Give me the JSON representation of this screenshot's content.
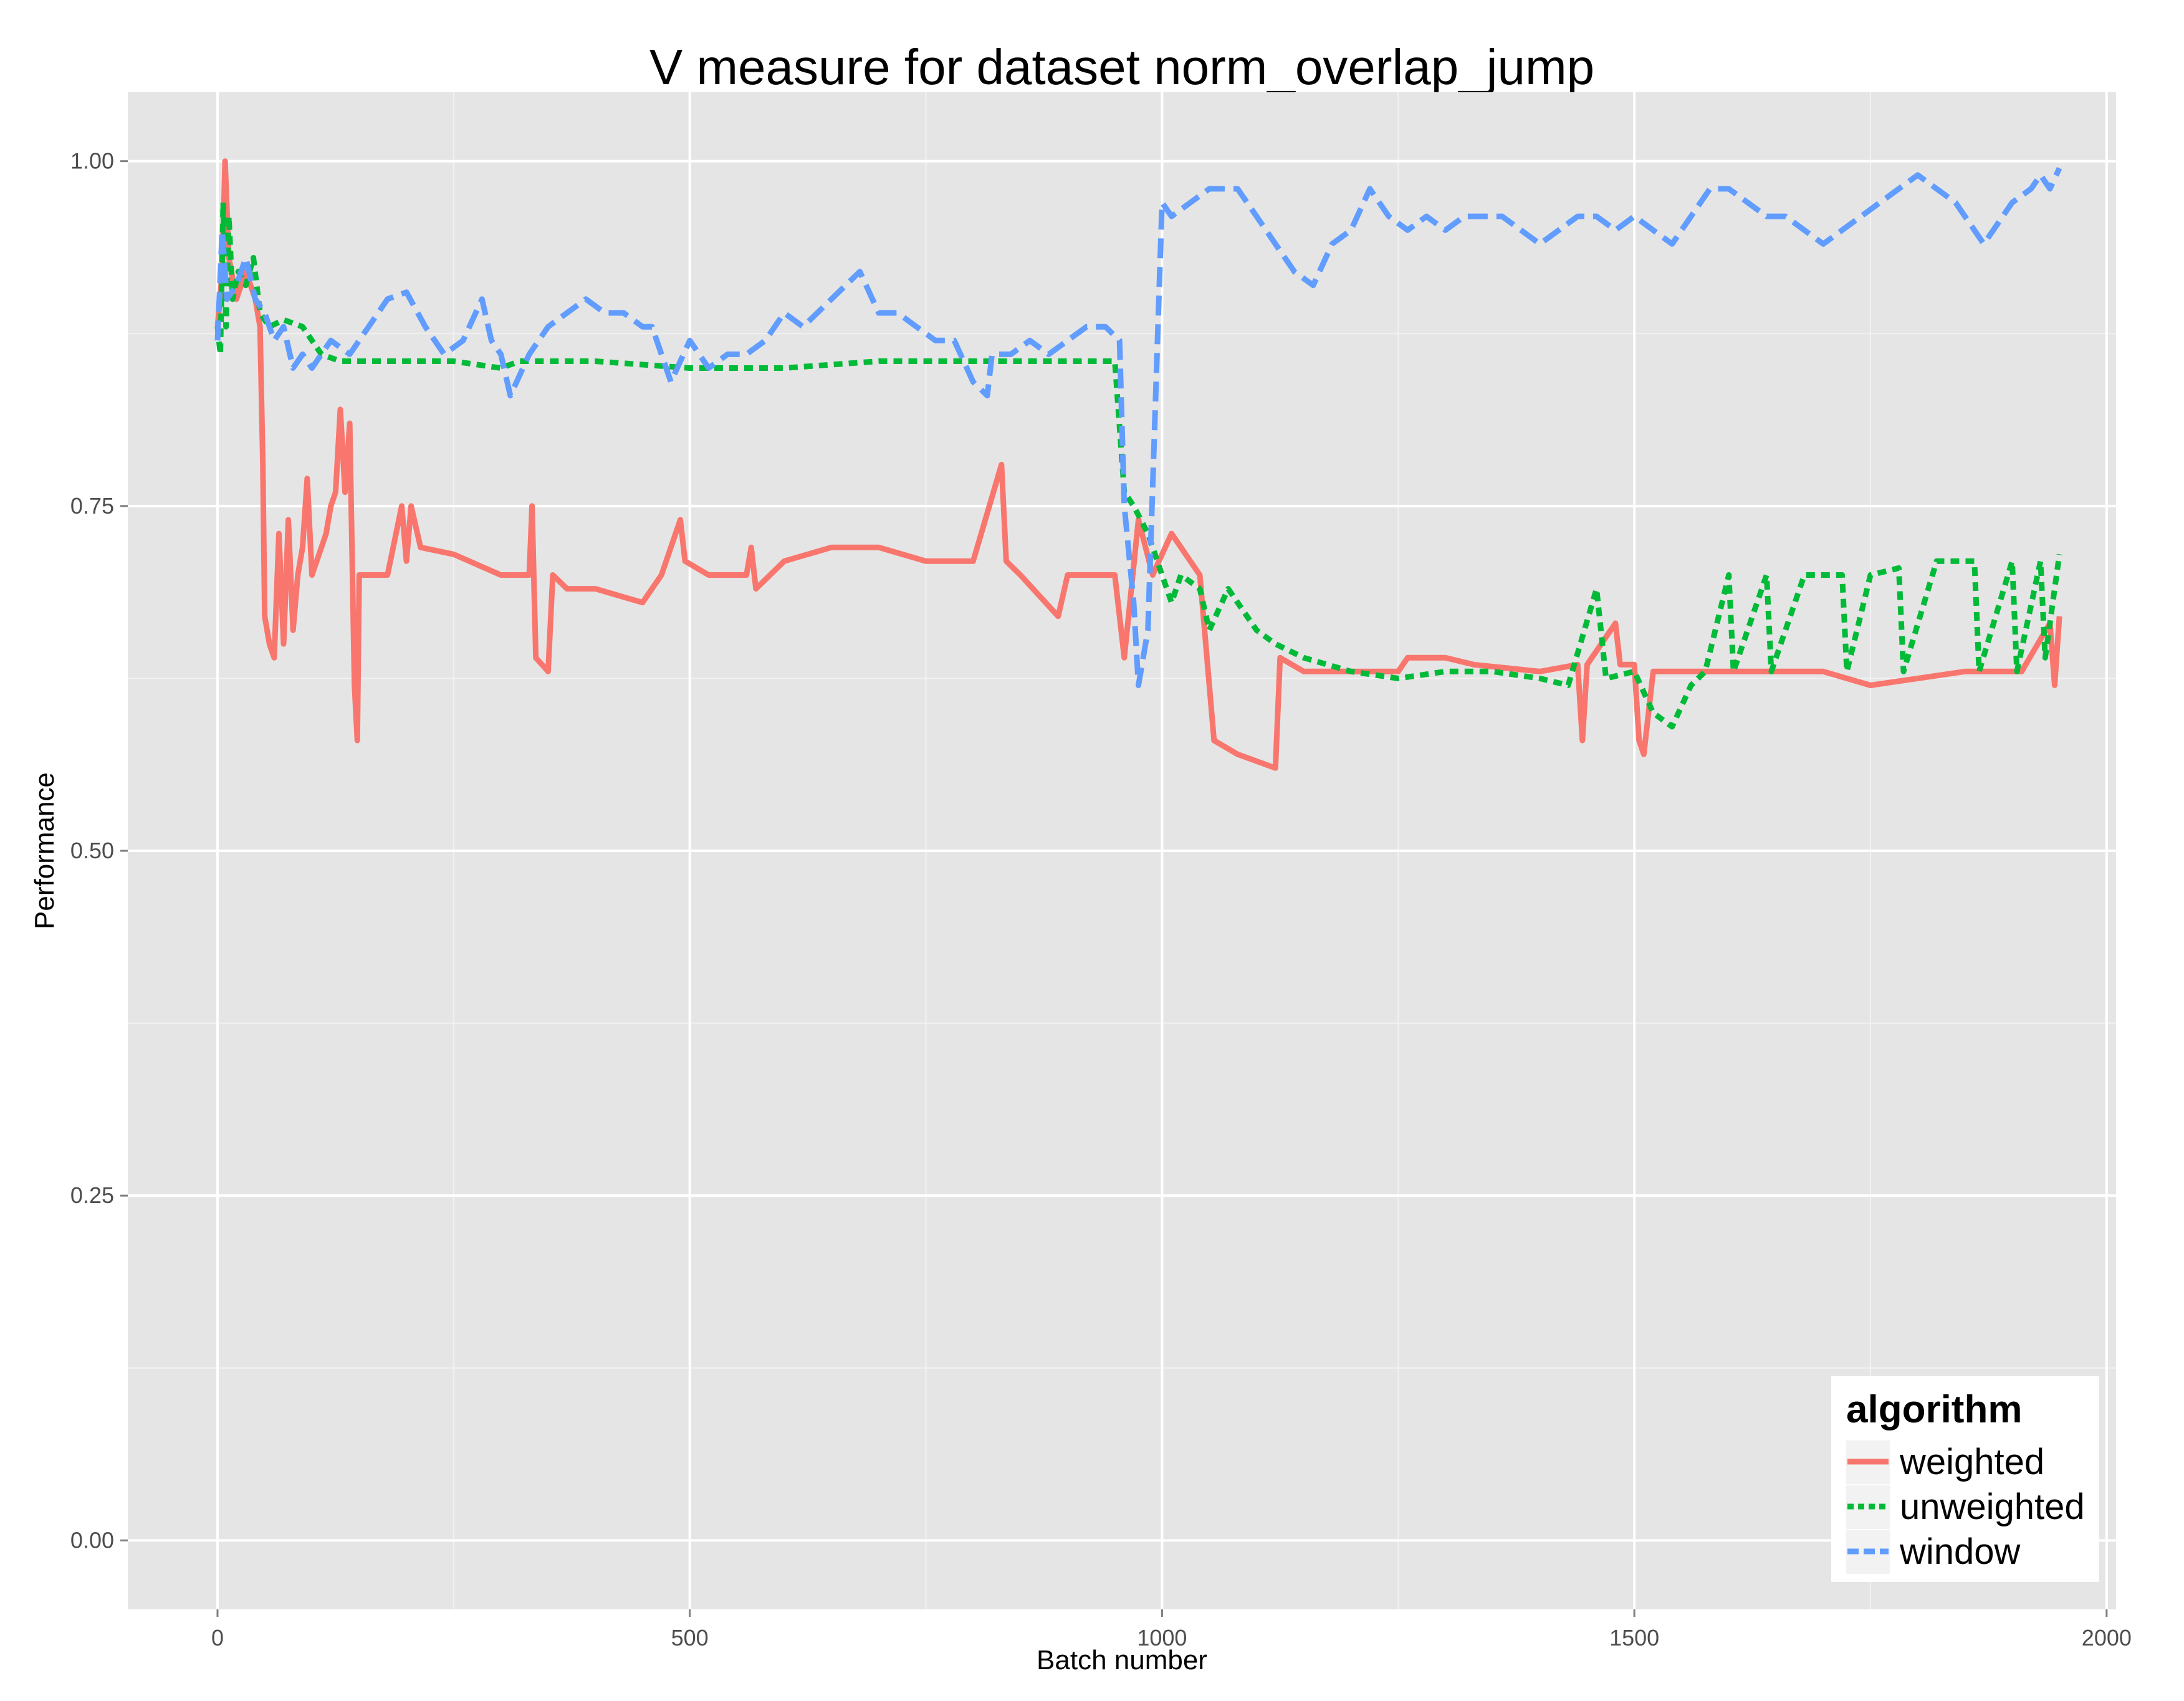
{
  "chart_data": {
    "type": "line",
    "title": "V measure for dataset norm_overlap_jump",
    "xlabel": "Batch number",
    "ylabel": "Performance",
    "xlim": [
      -95,
      2010
    ],
    "ylim": [
      -0.05,
      1.05
    ],
    "x_ticks": [
      0,
      500,
      1000,
      1500,
      2000
    ],
    "x_tick_labels": [
      "0",
      "500",
      "1000",
      "1500",
      "2000"
    ],
    "y_ticks": [
      0,
      0.25,
      0.5,
      0.75,
      1.0
    ],
    "y_tick_labels": [
      "0.00",
      "0.25",
      "0.50",
      "0.75",
      "1.00"
    ],
    "grid": true,
    "legend": {
      "title": "algorithm",
      "position": "bottom-right"
    },
    "series": [
      {
        "name": "weighted",
        "color": "#F8766D",
        "dash": "solid",
        "points": [
          [
            0,
            0.88
          ],
          [
            5,
            0.92
          ],
          [
            8,
            1.0
          ],
          [
            12,
            0.93
          ],
          [
            20,
            0.9
          ],
          [
            30,
            0.92
          ],
          [
            40,
            0.9
          ],
          [
            45,
            0.88
          ],
          [
            48,
            0.78
          ],
          [
            50,
            0.67
          ],
          [
            55,
            0.65
          ],
          [
            60,
            0.64
          ],
          [
            65,
            0.73
          ],
          [
            70,
            0.65
          ],
          [
            75,
            0.74
          ],
          [
            80,
            0.66
          ],
          [
            85,
            0.7
          ],
          [
            90,
            0.72
          ],
          [
            95,
            0.77
          ],
          [
            100,
            0.7
          ],
          [
            110,
            0.72
          ],
          [
            115,
            0.73
          ],
          [
            120,
            0.75
          ],
          [
            125,
            0.76
          ],
          [
            130,
            0.82
          ],
          [
            135,
            0.76
          ],
          [
            140,
            0.81
          ],
          [
            145,
            0.62
          ],
          [
            148,
            0.58
          ],
          [
            150,
            0.7
          ],
          [
            160,
            0.7
          ],
          [
            180,
            0.7
          ],
          [
            195,
            0.75
          ],
          [
            200,
            0.71
          ],
          [
            205,
            0.75
          ],
          [
            215,
            0.72
          ],
          [
            250,
            0.715
          ],
          [
            300,
            0.7
          ],
          [
            330,
            0.7
          ],
          [
            333,
            0.75
          ],
          [
            337,
            0.64
          ],
          [
            350,
            0.63
          ],
          [
            355,
            0.7
          ],
          [
            370,
            0.69
          ],
          [
            400,
            0.69
          ],
          [
            450,
            0.68
          ],
          [
            470,
            0.7
          ],
          [
            490,
            0.74
          ],
          [
            495,
            0.71
          ],
          [
            520,
            0.7
          ],
          [
            560,
            0.7
          ],
          [
            565,
            0.72
          ],
          [
            570,
            0.69
          ],
          [
            600,
            0.71
          ],
          [
            650,
            0.72
          ],
          [
            700,
            0.72
          ],
          [
            750,
            0.71
          ],
          [
            800,
            0.71
          ],
          [
            830,
            0.78
          ],
          [
            835,
            0.71
          ],
          [
            850,
            0.7
          ],
          [
            890,
            0.67
          ],
          [
            900,
            0.7
          ],
          [
            930,
            0.7
          ],
          [
            950,
            0.7
          ],
          [
            960,
            0.64
          ],
          [
            975,
            0.74
          ],
          [
            990,
            0.7
          ],
          [
            1010,
            0.73
          ],
          [
            1040,
            0.7
          ],
          [
            1055,
            0.58
          ],
          [
            1080,
            0.57
          ],
          [
            1100,
            0.565
          ],
          [
            1120,
            0.56
          ],
          [
            1125,
            0.64
          ],
          [
            1150,
            0.63
          ],
          [
            1200,
            0.63
          ],
          [
            1250,
            0.63
          ],
          [
            1260,
            0.64
          ],
          [
            1300,
            0.64
          ],
          [
            1330,
            0.635
          ],
          [
            1400,
            0.63
          ],
          [
            1440,
            0.635
          ],
          [
            1445,
            0.58
          ],
          [
            1450,
            0.635
          ],
          [
            1480,
            0.665
          ],
          [
            1485,
            0.635
          ],
          [
            1500,
            0.635
          ],
          [
            1505,
            0.58
          ],
          [
            1510,
            0.57
          ],
          [
            1520,
            0.63
          ],
          [
            1600,
            0.63
          ],
          [
            1700,
            0.63
          ],
          [
            1750,
            0.62
          ],
          [
            1800,
            0.625
          ],
          [
            1850,
            0.63
          ],
          [
            1900,
            0.63
          ],
          [
            1910,
            0.63
          ],
          [
            1940,
            0.665
          ],
          [
            1945,
            0.62
          ],
          [
            1950,
            0.67
          ]
        ]
      },
      {
        "name": "unweighted",
        "color": "#00BA38",
        "dash": "dotted",
        "points": [
          [
            0,
            0.88
          ],
          [
            3,
            0.86
          ],
          [
            6,
            0.97
          ],
          [
            9,
            0.88
          ],
          [
            12,
            0.96
          ],
          [
            16,
            0.9
          ],
          [
            22,
            0.92
          ],
          [
            30,
            0.91
          ],
          [
            38,
            0.93
          ],
          [
            45,
            0.89
          ],
          [
            55,
            0.88
          ],
          [
            70,
            0.885
          ],
          [
            90,
            0.88
          ],
          [
            110,
            0.86
          ],
          [
            130,
            0.855
          ],
          [
            160,
            0.855
          ],
          [
            200,
            0.855
          ],
          [
            250,
            0.855
          ],
          [
            300,
            0.85
          ],
          [
            320,
            0.855
          ],
          [
            400,
            0.855
          ],
          [
            500,
            0.85
          ],
          [
            600,
            0.85
          ],
          [
            700,
            0.855
          ],
          [
            800,
            0.855
          ],
          [
            900,
            0.855
          ],
          [
            950,
            0.855
          ],
          [
            960,
            0.76
          ],
          [
            970,
            0.75
          ],
          [
            985,
            0.73
          ],
          [
            1000,
            0.7
          ],
          [
            1010,
            0.68
          ],
          [
            1020,
            0.7
          ],
          [
            1040,
            0.69
          ],
          [
            1050,
            0.66
          ],
          [
            1070,
            0.69
          ],
          [
            1080,
            0.68
          ],
          [
            1100,
            0.66
          ],
          [
            1120,
            0.65
          ],
          [
            1150,
            0.64
          ],
          [
            1200,
            0.63
          ],
          [
            1250,
            0.625
          ],
          [
            1300,
            0.63
          ],
          [
            1350,
            0.63
          ],
          [
            1400,
            0.625
          ],
          [
            1430,
            0.62
          ],
          [
            1460,
            0.69
          ],
          [
            1470,
            0.625
          ],
          [
            1500,
            0.63
          ],
          [
            1520,
            0.6
          ],
          [
            1540,
            0.59
          ],
          [
            1560,
            0.62
          ],
          [
            1575,
            0.63
          ],
          [
            1600,
            0.7
          ],
          [
            1605,
            0.63
          ],
          [
            1640,
            0.7
          ],
          [
            1645,
            0.63
          ],
          [
            1680,
            0.7
          ],
          [
            1720,
            0.7
          ],
          [
            1725,
            0.63
          ],
          [
            1750,
            0.7
          ],
          [
            1780,
            0.705
          ],
          [
            1785,
            0.63
          ],
          [
            1820,
            0.71
          ],
          [
            1860,
            0.71
          ],
          [
            1865,
            0.63
          ],
          [
            1900,
            0.71
          ],
          [
            1905,
            0.63
          ],
          [
            1930,
            0.71
          ],
          [
            1935,
            0.64
          ],
          [
            1950,
            0.715
          ]
        ]
      },
      {
        "name": "window",
        "color": "#619CFF",
        "dash": "dashed",
        "points": [
          [
            0,
            0.87
          ],
          [
            5,
            0.95
          ],
          [
            10,
            0.9
          ],
          [
            20,
            0.91
          ],
          [
            30,
            0.93
          ],
          [
            40,
            0.9
          ],
          [
            50,
            0.89
          ],
          [
            60,
            0.87
          ],
          [
            70,
            0.88
          ],
          [
            80,
            0.85
          ],
          [
            90,
            0.86
          ],
          [
            100,
            0.85
          ],
          [
            120,
            0.87
          ],
          [
            140,
            0.86
          ],
          [
            160,
            0.88
          ],
          [
            180,
            0.9
          ],
          [
            200,
            0.905
          ],
          [
            220,
            0.88
          ],
          [
            240,
            0.86
          ],
          [
            260,
            0.87
          ],
          [
            280,
            0.9
          ],
          [
            290,
            0.87
          ],
          [
            300,
            0.86
          ],
          [
            310,
            0.83
          ],
          [
            330,
            0.86
          ],
          [
            350,
            0.88
          ],
          [
            370,
            0.89
          ],
          [
            390,
            0.9
          ],
          [
            410,
            0.89
          ],
          [
            430,
            0.89
          ],
          [
            450,
            0.88
          ],
          [
            460,
            0.88
          ],
          [
            480,
            0.84
          ],
          [
            500,
            0.87
          ],
          [
            520,
            0.85
          ],
          [
            540,
            0.86
          ],
          [
            560,
            0.86
          ],
          [
            580,
            0.87
          ],
          [
            600,
            0.89
          ],
          [
            620,
            0.88
          ],
          [
            650,
            0.9
          ],
          [
            680,
            0.92
          ],
          [
            700,
            0.89
          ],
          [
            720,
            0.89
          ],
          [
            740,
            0.88
          ],
          [
            760,
            0.87
          ],
          [
            780,
            0.87
          ],
          [
            800,
            0.84
          ],
          [
            815,
            0.83
          ],
          [
            820,
            0.86
          ],
          [
            840,
            0.86
          ],
          [
            860,
            0.87
          ],
          [
            880,
            0.86
          ],
          [
            900,
            0.87
          ],
          [
            920,
            0.88
          ],
          [
            940,
            0.88
          ],
          [
            955,
            0.87
          ],
          [
            960,
            0.75
          ],
          [
            970,
            0.68
          ],
          [
            975,
            0.62
          ],
          [
            985,
            0.66
          ],
          [
            1000,
            0.97
          ],
          [
            1010,
            0.96
          ],
          [
            1030,
            0.97
          ],
          [
            1050,
            0.98
          ],
          [
            1080,
            0.98
          ],
          [
            1100,
            0.96
          ],
          [
            1120,
            0.94
          ],
          [
            1140,
            0.92
          ],
          [
            1160,
            0.91
          ],
          [
            1180,
            0.94
          ],
          [
            1200,
            0.95
          ],
          [
            1220,
            0.98
          ],
          [
            1240,
            0.96
          ],
          [
            1260,
            0.95
          ],
          [
            1280,
            0.96
          ],
          [
            1300,
            0.95
          ],
          [
            1320,
            0.96
          ],
          [
            1340,
            0.96
          ],
          [
            1360,
            0.96
          ],
          [
            1380,
            0.95
          ],
          [
            1400,
            0.94
          ],
          [
            1420,
            0.95
          ],
          [
            1440,
            0.96
          ],
          [
            1460,
            0.96
          ],
          [
            1480,
            0.95
          ],
          [
            1500,
            0.96
          ],
          [
            1520,
            0.95
          ],
          [
            1540,
            0.94
          ],
          [
            1560,
            0.96
          ],
          [
            1580,
            0.98
          ],
          [
            1600,
            0.98
          ],
          [
            1620,
            0.97
          ],
          [
            1640,
            0.96
          ],
          [
            1660,
            0.96
          ],
          [
            1680,
            0.95
          ],
          [
            1700,
            0.94
          ],
          [
            1720,
            0.95
          ],
          [
            1740,
            0.96
          ],
          [
            1760,
            0.97
          ],
          [
            1780,
            0.98
          ],
          [
            1800,
            0.99
          ],
          [
            1820,
            0.98
          ],
          [
            1840,
            0.97
          ],
          [
            1860,
            0.95
          ],
          [
            1870,
            0.94
          ],
          [
            1880,
            0.95
          ],
          [
            1900,
            0.97
          ],
          [
            1920,
            0.98
          ],
          [
            1930,
            0.99
          ],
          [
            1940,
            0.98
          ],
          [
            1950,
            0.995
          ]
        ]
      }
    ]
  }
}
